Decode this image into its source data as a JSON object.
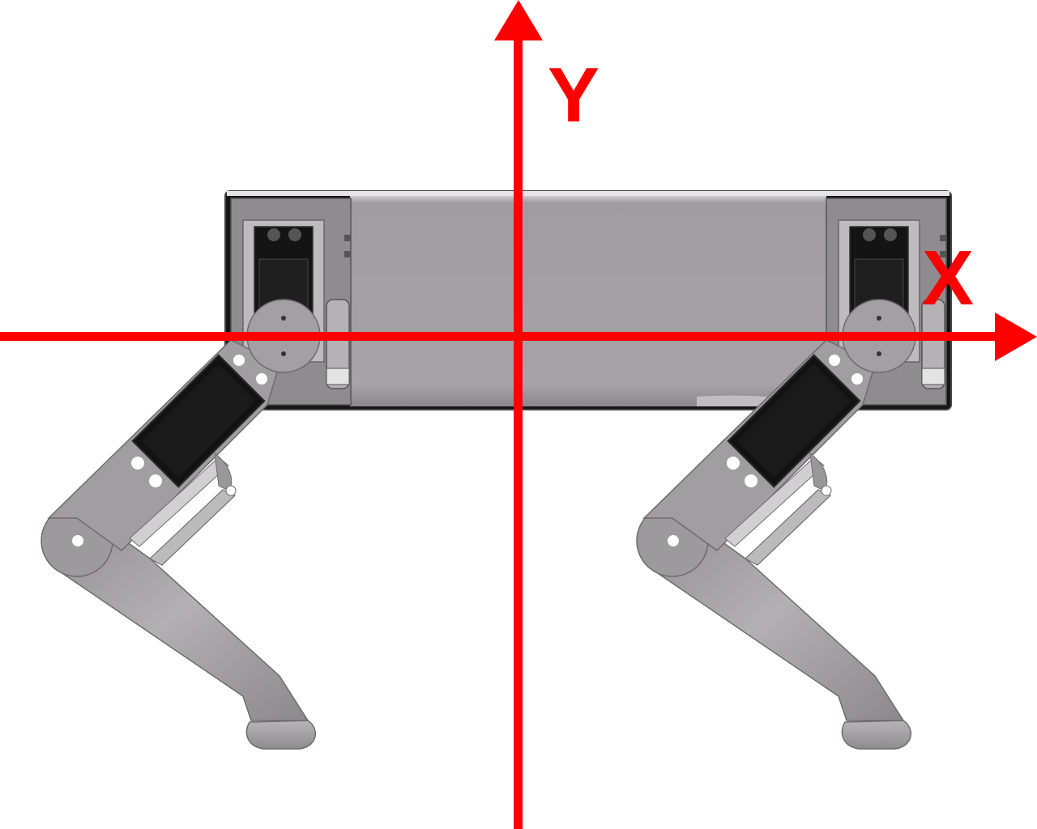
{
  "axes": {
    "x_label": "X",
    "y_label": "Y",
    "color": "#ff0000"
  },
  "robot": {
    "body_color": "#9c999c",
    "metal_color": "#a8a5a8",
    "servo_color": "#111111"
  }
}
